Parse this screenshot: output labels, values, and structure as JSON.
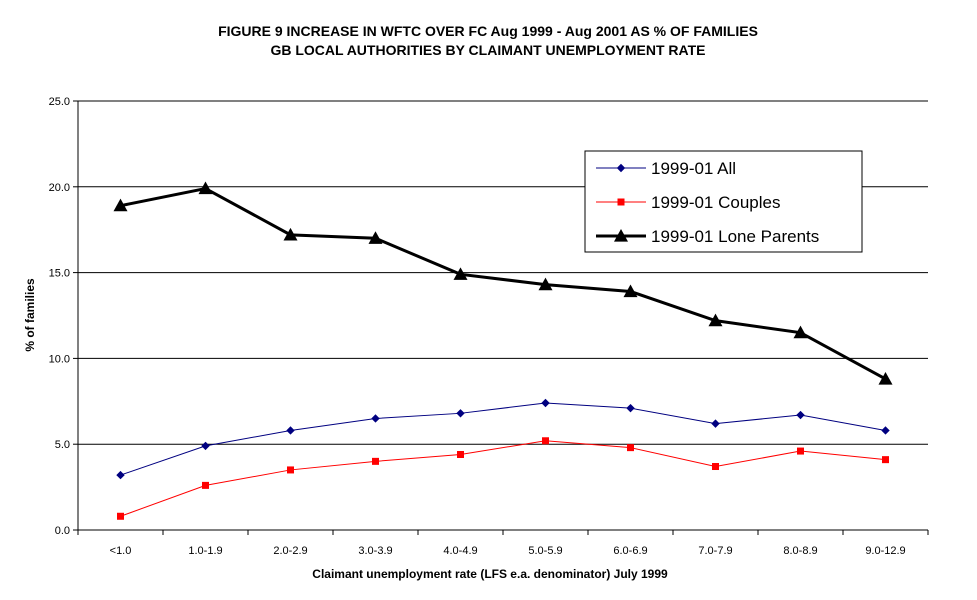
{
  "chart_data": {
    "type": "line",
    "title": "FIGURE 9   INCREASE IN WFTC OVER FC Aug 1999 - Aug 2001 AS % OF FAMILIES",
    "subtitle": "GB LOCAL AUTHORITIES BY CLAIMANT UNEMPLOYMENT RATE",
    "xlabel": "Claimant unemployment rate (LFS e.a. denominator) July 1999",
    "ylabel": "%  of families",
    "categories": [
      "<1.0",
      "1.0-1.9",
      "2.0-2.9",
      "3.0-3.9",
      "4.0-4.9",
      "5.0-5.9",
      "6.0-6.9",
      "7.0-7.9",
      "8.0-8.9",
      "9.0-12.9"
    ],
    "ylim": [
      0,
      25
    ],
    "yticks": [
      "0.0",
      "5.0",
      "10.0",
      "15.0",
      "20.0",
      "25.0"
    ],
    "grid": true,
    "legend_position": "top-right",
    "series": [
      {
        "name": "1999-01 All",
        "color": "#000080",
        "marker": "diamond",
        "values": [
          3.2,
          4.9,
          5.8,
          6.5,
          6.8,
          7.4,
          7.1,
          6.2,
          6.7,
          5.8
        ]
      },
      {
        "name": "1999-01 Couples",
        "color": "#ff0000",
        "marker": "square",
        "values": [
          0.8,
          2.6,
          3.5,
          4.0,
          4.4,
          5.2,
          4.8,
          3.7,
          4.6,
          4.1
        ]
      },
      {
        "name": "1999-01 Lone Parents",
        "color": "#000000",
        "marker": "triangle",
        "values": [
          18.9,
          19.9,
          17.2,
          17.0,
          14.9,
          14.3,
          13.9,
          12.2,
          11.5,
          8.8
        ]
      }
    ]
  }
}
